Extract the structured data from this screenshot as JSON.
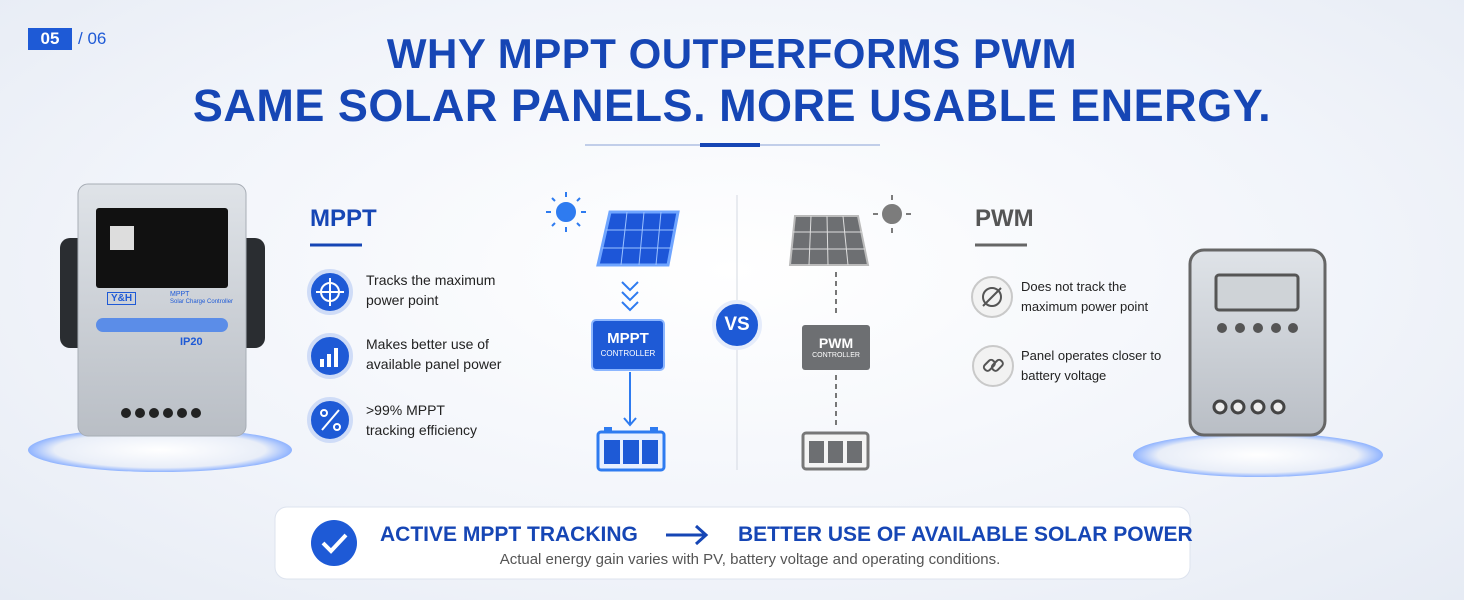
{
  "page_indicator": {
    "current": "05",
    "total": "/ 06"
  },
  "header": {
    "title_line1": "WHY MPPT OUTPERFORMS PWM",
    "title_line2": "SAME SOLAR PANELS. MORE USABLE ENERGY."
  },
  "mppt": {
    "heading": "MPPT",
    "features": [
      "Tracks the maximum power point",
      "Makes better use of available panel power",
      ">99% MPPT tracking efficiency"
    ]
  },
  "diagram": {
    "mppt_controller": {
      "label": "MPPT",
      "sublabel": "CONTROLLER"
    },
    "vs": "VS",
    "pwm_controller": {
      "label": "PWM",
      "sublabel": "CONTROLLER"
    }
  },
  "pwm": {
    "heading": "PWM",
    "features": [
      "Does not track the maximum power point",
      "Panel operates closer to battery voltage"
    ]
  },
  "device": {
    "brand": "Y&H",
    "model": "MPPT",
    "description": "Solar Charge Controller",
    "rating": "IP20"
  },
  "footer": {
    "left": "ACTIVE MPPT TRACKING",
    "right": "BETTER USE OF AVAILABLE SOLAR POWER",
    "note": "Actual energy gain varies with PV, battery voltage and operating conditions."
  }
}
